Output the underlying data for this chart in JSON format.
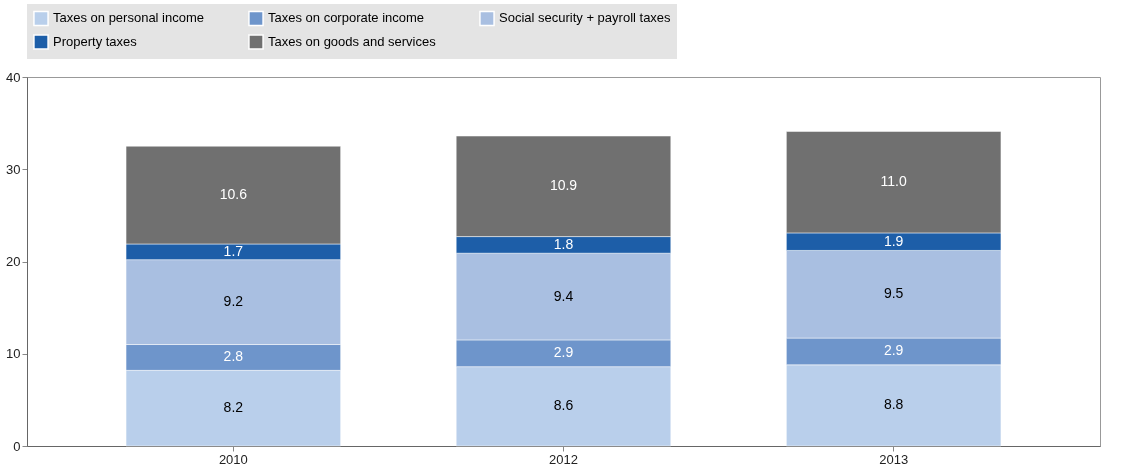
{
  "chart_data": {
    "type": "bar",
    "stacked": true,
    "categories": [
      "2010",
      "2012",
      "2013"
    ],
    "series": [
      {
        "name": "Taxes on personal income",
        "color": "#b9cfeb",
        "values": [
          8.2,
          8.6,
          8.8
        ],
        "value_labels": [
          "8.2",
          "8.6",
          "8.8"
        ]
      },
      {
        "name": "Taxes on corporate income",
        "color": "#6e95cb",
        "values": [
          2.8,
          2.9,
          2.9
        ],
        "value_labels": [
          "2.8",
          "2.9",
          "2.9"
        ]
      },
      {
        "name": "Social security + payroll taxes",
        "color": "#a9bfe1",
        "values": [
          9.2,
          9.4,
          9.5
        ],
        "value_labels": [
          "9.2",
          "9.4",
          "9.5"
        ]
      },
      {
        "name": "Property taxes",
        "color": "#1d5ea8",
        "values": [
          1.7,
          1.8,
          1.9
        ],
        "value_labels": [
          "1.7",
          "1.8",
          "1.9"
        ]
      },
      {
        "name": "Taxes on goods and services",
        "color": "#707070",
        "values": [
          10.6,
          10.9,
          11.0
        ],
        "value_labels": [
          "10.6",
          "10.9",
          "11.0"
        ]
      }
    ],
    "ylim": [
      0,
      40
    ],
    "yticks": [
      0,
      10,
      20,
      30,
      40
    ],
    "grid": false,
    "legend": "top"
  }
}
